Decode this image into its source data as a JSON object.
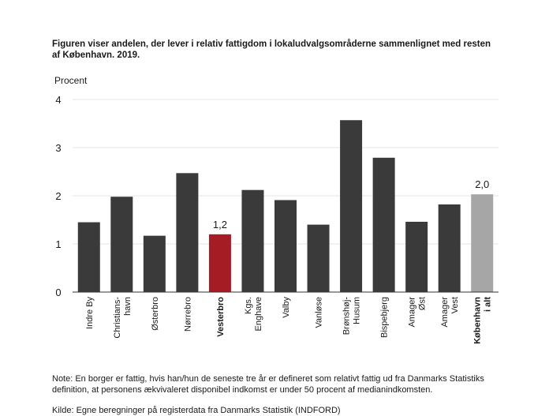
{
  "title": "Figuren viser andelen, der lever i relativ fattigdom i lokaludvalgsområderne sammenlignet med resten af København. 2019.",
  "note": "Note: En borger er fattig, hvis han/hun de seneste tre år er defineret som relativt fattig ud fra Danmarks Statistiks definition, at personens ækvivaleret disponibel indkomst er under 50 procent af medianindkomsten.",
  "source": "Kilde: Egne beregninger på registerdata fra Danmarks Statistik (INDFORD)",
  "colors": {
    "default_bar": "#3a3a3a",
    "highlight_bar": "#a51c24",
    "total_bar": "#a6a6a6",
    "grid": "#e6e6e6",
    "axis": "#333333"
  },
  "chart_data": {
    "type": "bar",
    "ylabel": "Procent",
    "ylim": [
      0,
      4
    ],
    "yticks": [
      "0",
      "1",
      "2",
      "3",
      "4"
    ],
    "grid": true,
    "categories": [
      [
        "Indre By"
      ],
      [
        "Christians-",
        "havn"
      ],
      [
        "Østerbro"
      ],
      [
        "Nørrebro"
      ],
      [
        "Vesterbro"
      ],
      [
        "Kgs.",
        "Enghave"
      ],
      [
        "Valby"
      ],
      [
        "Vanløse"
      ],
      [
        "Brønshøj-",
        "Husum"
      ],
      [
        "Bispebjerg"
      ],
      [
        "Amager",
        "Øst"
      ],
      [
        "Amager",
        "Vest"
      ],
      [
        "København",
        "i alt"
      ]
    ],
    "values": [
      1.45,
      1.98,
      1.17,
      2.47,
      1.2,
      2.12,
      1.91,
      1.4,
      3.57,
      2.79,
      1.46,
      1.82,
      2.03
    ],
    "bold_categories": [
      4,
      12
    ],
    "bar_style": [
      "default",
      "default",
      "default",
      "default",
      "highlight",
      "default",
      "default",
      "default",
      "default",
      "default",
      "default",
      "default",
      "total"
    ],
    "data_labels": [
      null,
      null,
      null,
      null,
      "1,2",
      null,
      null,
      null,
      null,
      null,
      null,
      null,
      "2,0"
    ]
  }
}
